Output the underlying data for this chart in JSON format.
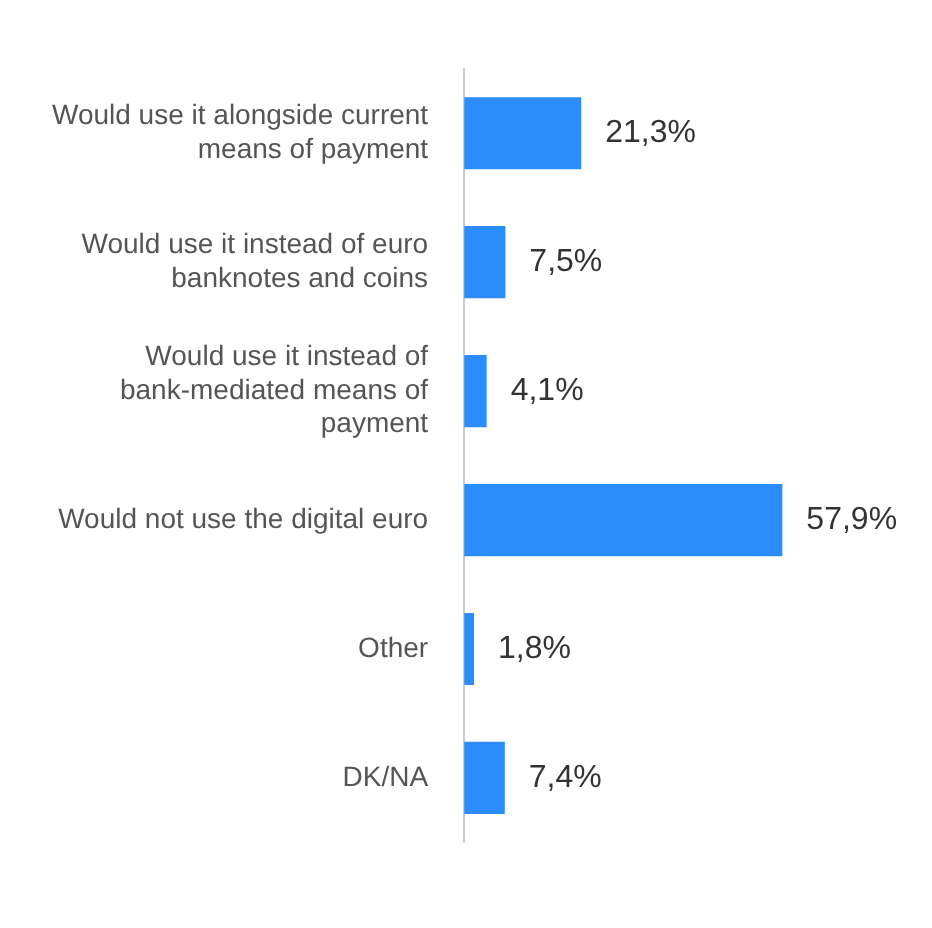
{
  "chart_data": {
    "type": "bar",
    "orientation": "horizontal",
    "categories": [
      "Would use it alongside current means of payment",
      "Would use it instead of euro banknotes and coins",
      "Would use it instead of bank-mediated means of payment",
      "Would not use the digital euro",
      "Other",
      "DK/NA"
    ],
    "values": [
      21.3,
      7.5,
      4.1,
      57.9,
      1.8,
      7.4
    ],
    "value_labels": [
      "21,3%",
      "7,5%",
      "4,1%",
      "57,9%",
      "1,8%",
      "7,4%"
    ],
    "color": "#2b8cfc"
  }
}
